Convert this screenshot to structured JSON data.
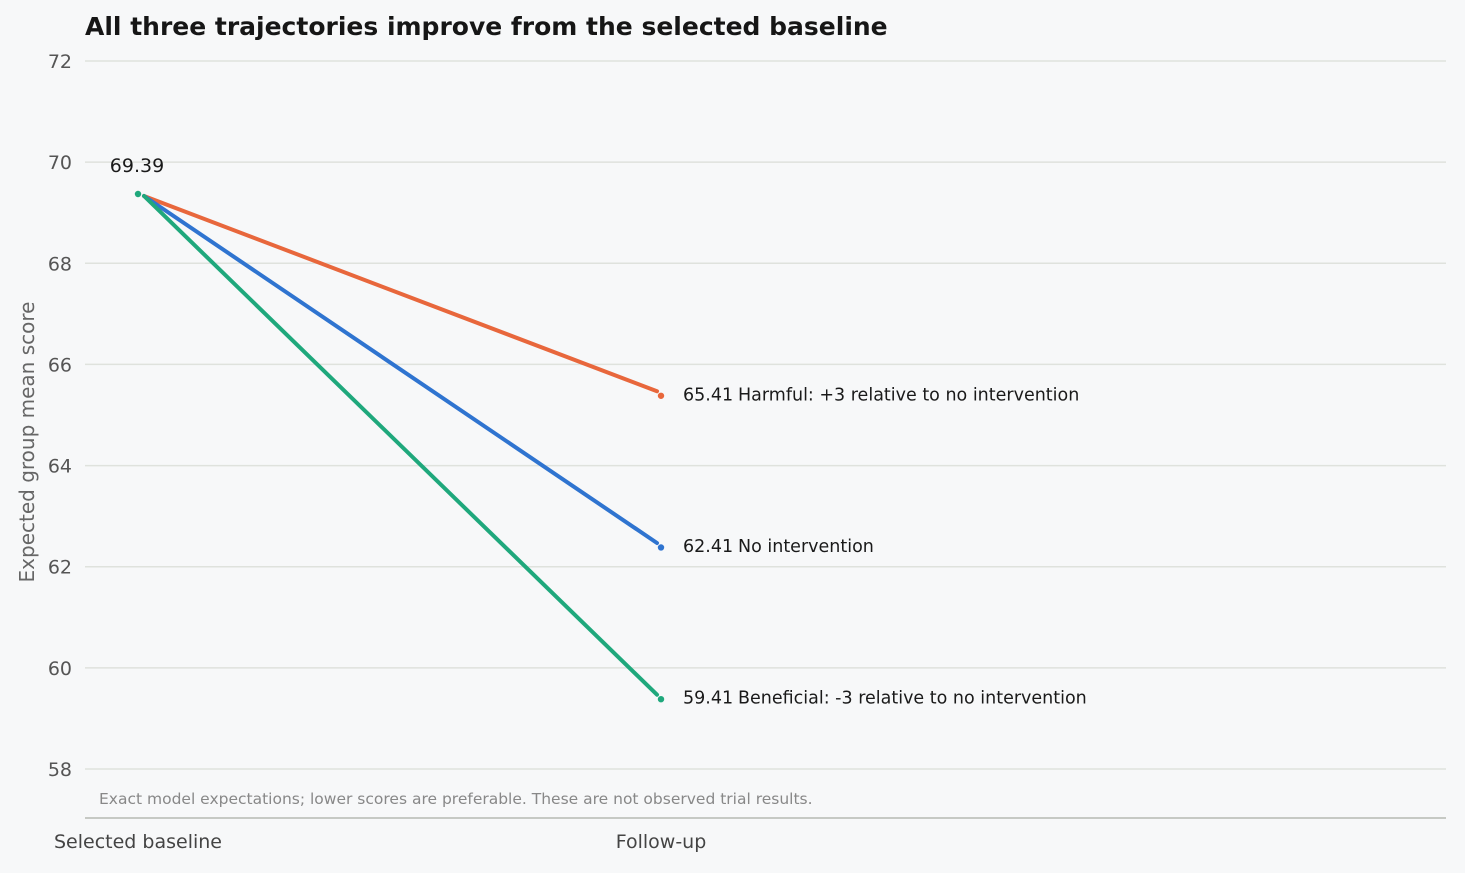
{
  "chart_data": {
    "type": "line",
    "title": "All three trajectories improve from the selected baseline",
    "ylabel": "Expected group mean score",
    "xlabel": "",
    "x": [
      "Selected baseline",
      "Follow-up"
    ],
    "ylim": [
      58,
      72
    ],
    "yticks": [
      58,
      60,
      62,
      64,
      66,
      68,
      70,
      72
    ],
    "grid": true,
    "baseline_label": "69.39",
    "series": [
      {
        "name": "Harmful: +3 relative to no intervention",
        "values": [
          69.39,
          65.41
        ],
        "end_label": "65.41",
        "color": "#e8673c"
      },
      {
        "name": "No intervention",
        "values": [
          69.39,
          62.41
        ],
        "end_label": "62.41",
        "color": "#2f74d0"
      },
      {
        "name": "Beneficial: -3 relative to no intervention",
        "values": [
          69.39,
          59.41
        ],
        "end_label": "59.41",
        "color": "#1fa87c"
      }
    ],
    "note": "Exact model expectations; lower scores are preferable. These are not observed trial results."
  }
}
